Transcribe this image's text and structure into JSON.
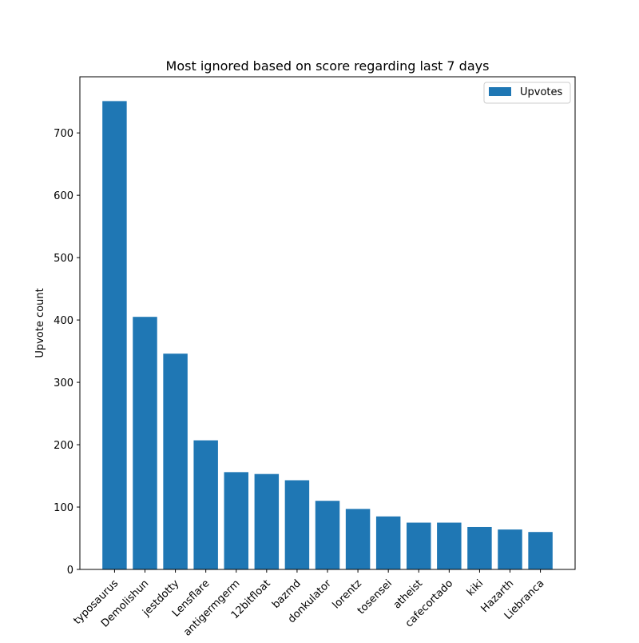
{
  "chart_data": {
    "type": "bar",
    "title": "Most ignored based on score regarding last 7 days",
    "xlabel": "",
    "ylabel": "Upvote count",
    "categories": [
      "typosaurus",
      "Demolishun",
      "jestdotty",
      "Lensflare",
      "antigermgerm",
      "12bitfloat",
      "bazmd",
      "donkulator",
      "lorentz",
      "tosensei",
      "atheist",
      "cafecortado",
      "kiki",
      "Hazarth",
      "Liebranca"
    ],
    "series": [
      {
        "name": "Upvotes",
        "color": "#1f77b4",
        "values": [
          751,
          405,
          346,
          207,
          156,
          153,
          143,
          110,
          97,
          85,
          75,
          75,
          68,
          64,
          60
        ]
      }
    ],
    "ylim": [
      0,
      790
    ],
    "yticks": [
      0,
      100,
      200,
      300,
      400,
      500,
      600,
      700
    ],
    "legend": {
      "placement": "top-right",
      "entries": [
        "Upvotes"
      ]
    },
    "grid": false
  }
}
